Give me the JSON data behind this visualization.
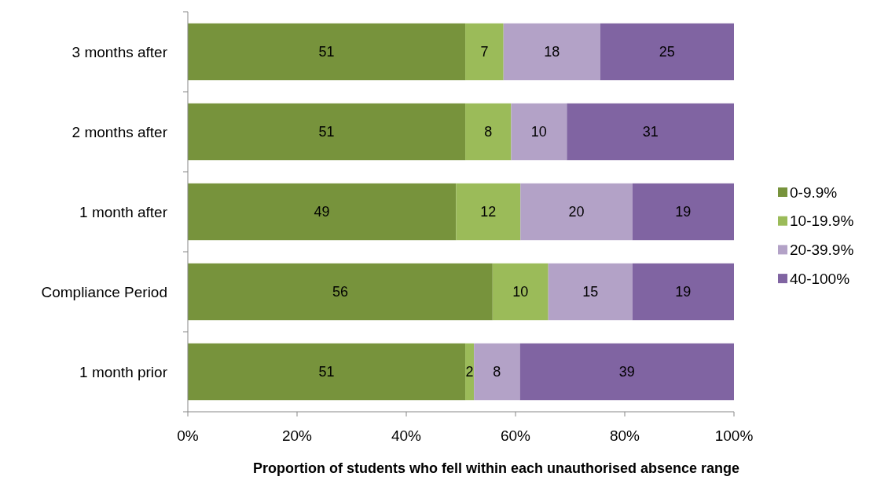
{
  "chart_data": {
    "type": "bar",
    "orientation": "horizontal",
    "stacked": true,
    "categories": [
      "3 months after",
      "2 months after",
      "1 month after",
      "Compliance Period",
      "1 month prior"
    ],
    "series": [
      {
        "name": "0-9.9%",
        "color": "#77933c",
        "values": [
          50.8,
          50.8,
          49.1,
          55.8,
          50.8
        ],
        "value_labels": [
          "51",
          "51",
          "49",
          "56",
          "51"
        ]
      },
      {
        "name": "10-19.9%",
        "color": "#9bbb59",
        "values": [
          7.0,
          8.4,
          11.8,
          10.2,
          1.6
        ],
        "value_labels": [
          "7",
          "8",
          "12",
          "10",
          "2"
        ]
      },
      {
        "name": "20-39.9%",
        "color": "#b3a2c7",
        "values": [
          17.7,
          10.2,
          20.5,
          15.4,
          8.4
        ],
        "value_labels": [
          "18",
          "10",
          "20",
          "15",
          "8"
        ]
      },
      {
        "name": "40-100%",
        "color": "#8064a2",
        "values": [
          24.5,
          30.6,
          18.6,
          18.6,
          39.2
        ],
        "value_labels": [
          "25",
          "31",
          "19",
          "19",
          "39"
        ]
      }
    ],
    "xlim": [
      0,
      100
    ],
    "xticks": [
      {
        "value": 0,
        "label": "0%"
      },
      {
        "value": 20,
        "label": "20%"
      },
      {
        "value": 40,
        "label": "40%"
      },
      {
        "value": 60,
        "label": "60%"
      },
      {
        "value": 80,
        "label": "80%"
      },
      {
        "value": 100,
        "label": "100%"
      }
    ],
    "xlabel": "Proportion of students who fell within each unauthorised absence range",
    "legend": "right",
    "grid": false
  }
}
